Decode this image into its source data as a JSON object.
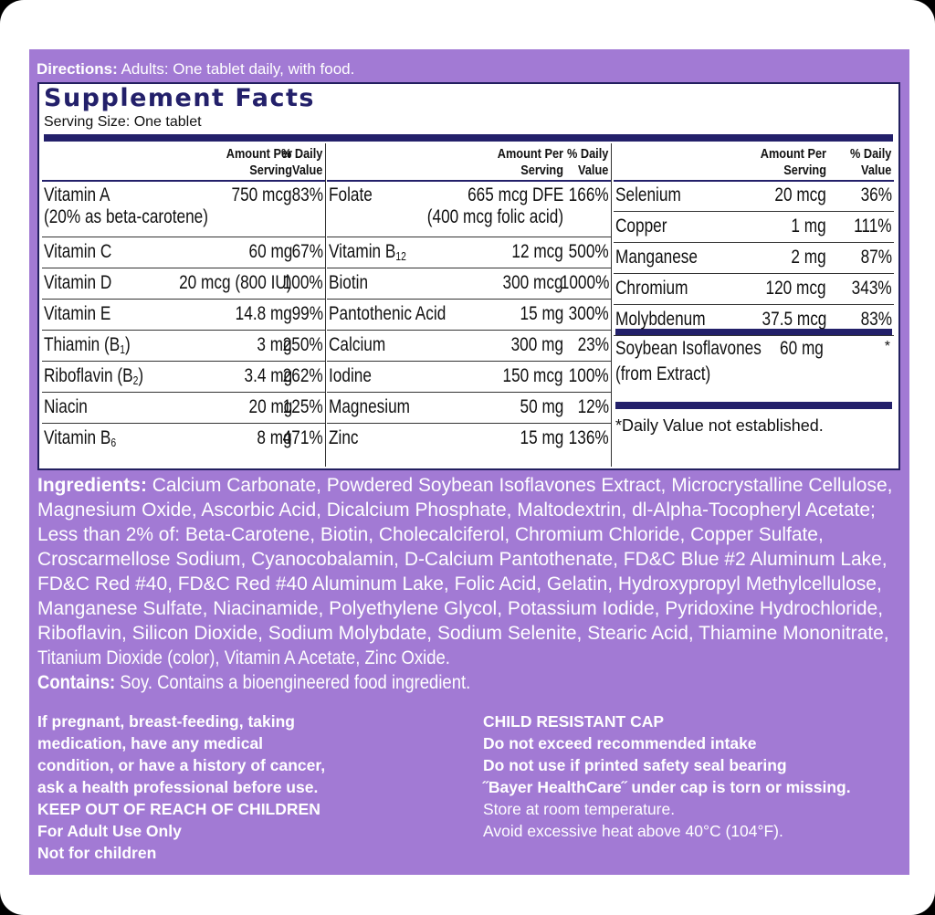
{
  "directions": {
    "label": "Directions:",
    "text": " Adults: One tablet daily, with food."
  },
  "facts": {
    "title": "Supplement Facts",
    "serving_size": "Serving Size: One tablet",
    "header_amount": [
      "Amount Per",
      "Serving"
    ],
    "header_dv": [
      "% Daily",
      "Value"
    ],
    "col1": [
      {
        "name": "Vitamin A",
        "amount": "750 mcg",
        "dv": "83%",
        "note": "(20% as beta-carotene)"
      },
      {
        "name": "Vitamin C",
        "amount": "60 mg",
        "dv": "67%"
      },
      {
        "name": "Vitamin D",
        "amount": "20 mcg (800 IU)",
        "dv": "100%"
      },
      {
        "name": "Vitamin E",
        "amount": "14.8 mg",
        "dv": "99%"
      },
      {
        "name": "Thiamin (B",
        "name_sub": "1",
        "name_end": ")",
        "amount": "3 mg",
        "dv": "250%"
      },
      {
        "name": "Riboflavin (B",
        "name_sub": "2",
        "name_end": ")",
        "amount": "3.4 mg",
        "dv": "262%"
      },
      {
        "name": "Niacin",
        "amount": "20 mg",
        "dv": "125%"
      },
      {
        "name": "Vitamin B",
        "name_sub": "6",
        "amount": "8 mg",
        "dv": "471%"
      }
    ],
    "col2": [
      {
        "name": "Folate",
        "amount": "665 mcg DFE",
        "dv": "166%",
        "note": "(400 mcg folic acid)"
      },
      {
        "name": "Vitamin B",
        "name_sub": "12",
        "amount": "12 mcg",
        "dv": "500%"
      },
      {
        "name": "Biotin",
        "amount": "300 mcg",
        "dv": "1000%"
      },
      {
        "name": "Pantothenic Acid",
        "amount": "15 mg",
        "dv": "300%"
      },
      {
        "name": "Calcium",
        "amount": "300 mg",
        "dv": "23%"
      },
      {
        "name": "Iodine",
        "amount": "150 mcg",
        "dv": "100%"
      },
      {
        "name": "Magnesium",
        "amount": "50 mg",
        "dv": "12%"
      },
      {
        "name": "Zinc",
        "amount": "15 mg",
        "dv": "136%"
      }
    ],
    "col3": [
      {
        "name": "Selenium",
        "amount": "20 mcg",
        "dv": "36%"
      },
      {
        "name": "Copper",
        "amount": "1 mg",
        "dv": "111%"
      },
      {
        "name": "Manganese",
        "amount": "2 mg",
        "dv": "87%"
      },
      {
        "name": "Chromium",
        "amount": "120 mcg",
        "dv": "343%"
      },
      {
        "name": "Molybdenum",
        "amount": "37.5 mcg",
        "dv": "83%"
      }
    ],
    "soy": {
      "name_line1": "Soybean Isoflavones",
      "name_line2": "(from Extract)",
      "amount": "60 mg",
      "dv": "*"
    },
    "dv_note": "*Daily Value not established."
  },
  "ingredients": {
    "label": "Ingredients:",
    "lines": [
      " Calcium Carbonate, Powdered Soybean Isoflavones Extract, Microcrystalline Cellulose,",
      "Magnesium Oxide, Ascorbic Acid, Dicalcium Phosphate, Maltodextrin, dl-Alpha-Tocopheryl Acetate;",
      "Less than 2% of: Beta-Carotene, Biotin, Cholecalciferol, Chromium Chloride, Copper Sulfate,",
      "Croscarmellose Sodium, Cyanocobalamin, D-Calcium Pantothenate, FD&C Blue #2 Aluminum Lake,",
      "FD&C Red #40, FD&C Red #40 Aluminum Lake, Folic Acid, Gelatin, Hydroxypropyl Methylcellulose,",
      "Manganese Sulfate, Niacinamide, Polyethylene Glycol, Potassium Iodide, Pyridoxine Hydrochloride,",
      "Riboflavin, Silicon Dioxide, Sodium Molybdate, Sodium Selenite, Stearic Acid, Thiamine Mononitrate,",
      "Titanium Dioxide (color), Vitamin A Acetate, Zinc Oxide."
    ],
    "contains_label": "Contains:",
    "contains_text": " Soy.  Contains a bioengineered food ingredient."
  },
  "warnings_left": [
    "If pregnant, breast-feeding, taking",
    "medication, have any medical",
    "condition, or have a history of cancer,",
    "ask a health professional before use.",
    "KEEP OUT OF REACH OF CHILDREN",
    "For Adult Use Only",
    "Not for children"
  ],
  "warnings_right": {
    "bold": [
      "CHILD RESISTANT CAP",
      "Do not exceed recommended intake",
      "Do not use if printed safety seal bearing",
      "˝Bayer HealthCare˝ under cap is torn or missing."
    ],
    "normal": [
      "Store at room temperature.",
      "Avoid excessive heat above 40°C (104°F)."
    ]
  },
  "colors": {
    "label_purple": "#a27ad4",
    "navy": "#23206a"
  }
}
